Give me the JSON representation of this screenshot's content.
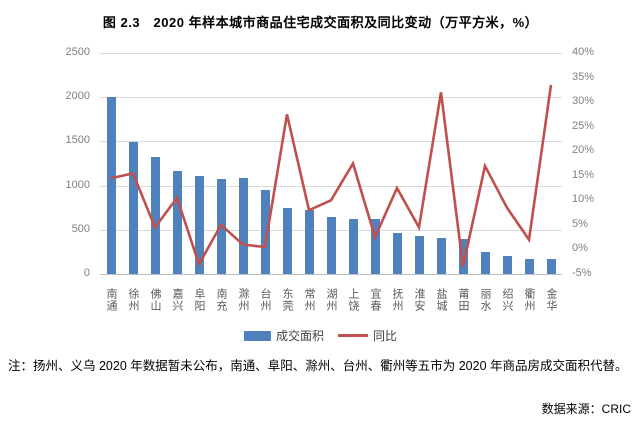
{
  "title": "图 2.3　2020 年样本城市商品住宅成交面积及同比变动（万平方米，%）",
  "note": "注：扬州、义乌 2020 年数据暂未公布，南通、阜阳、滁州、台州、衢州等五市为 2020 年商品房成交面积代替。",
  "source": "数据来源：CRIC",
  "legend": {
    "bar_label": "成交面积",
    "line_label": "同比"
  },
  "colors": {
    "bar": "#4f81bd",
    "line": "#c0504d",
    "grid": "#d9d9d9",
    "axis_text": "#808080",
    "category_text": "#595959"
  },
  "chart_data": {
    "type": "bar",
    "subtype": "bar+line dual-axis combo",
    "title": "图 2.3　2020 年样本城市商品住宅成交面积及同比变动（万平方米，%）",
    "categories": [
      "南通",
      "徐州",
      "佛山",
      "嘉兴",
      "阜阳",
      "南充",
      "滁州",
      "台州",
      "东莞",
      "常州",
      "湖州",
      "上饶",
      "宜春",
      "抚州",
      "淮安",
      "盐城",
      "莆田",
      "丽水",
      "绍兴",
      "衢州",
      "金华"
    ],
    "series": [
      {
        "name": "成交面积",
        "type": "bar",
        "axis": "left",
        "color": "#4f81bd",
        "values": [
          2000,
          1495,
          1320,
          1170,
          1105,
          1080,
          1085,
          955,
          750,
          720,
          650,
          620,
          620,
          460,
          435,
          410,
          400,
          245,
          205,
          165,
          175
        ]
      },
      {
        "name": "同比",
        "type": "line",
        "axis": "right",
        "color": "#c0504d",
        "values": [
          14.5,
          15.5,
          4.5,
          10.5,
          -3,
          5,
          1,
          0.5,
          27.5,
          8,
          10,
          17.5,
          2.5,
          12.5,
          4.5,
          32,
          -3.5,
          17,
          8.5,
          2,
          33.5
        ]
      }
    ],
    "left_axis": {
      "min": 0,
      "max": 2500,
      "step": 500,
      "ticks": [
        "0",
        "500",
        "1000",
        "1500",
        "2000",
        "2500"
      ]
    },
    "right_axis": {
      "min": -5,
      "max": 40,
      "step": 5,
      "ticks": [
        "-5%",
        "0%",
        "5%",
        "10%",
        "15%",
        "20%",
        "25%",
        "30%",
        "35%",
        "40%"
      ]
    },
    "grid": true,
    "legend_position": "bottom"
  }
}
